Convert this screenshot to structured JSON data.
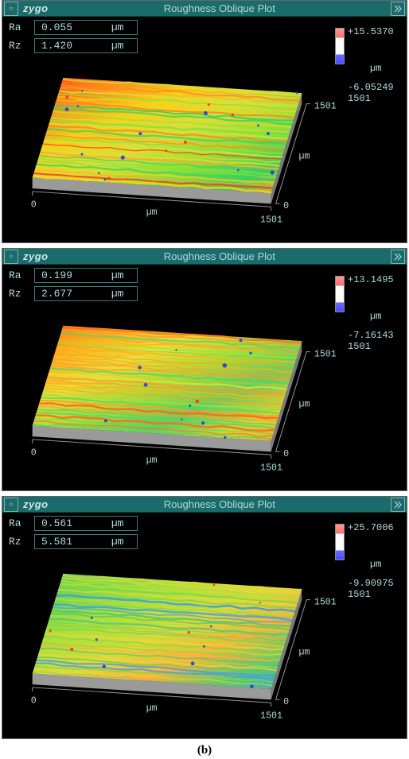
{
  "brand": "zygo",
  "title": "Roughness Oblique Plot",
  "caption": "(b)",
  "axis": {
    "x": {
      "unit": "µm",
      "min": "0",
      "max": "1501"
    },
    "y": {
      "unit": "µm",
      "min": "0",
      "max": "1501"
    }
  },
  "panels": [
    {
      "ra": {
        "label": "Ra",
        "value": "0.055",
        "unit": "µm"
      },
      "rz": {
        "label": "Rz",
        "value": "1.420",
        "unit": "µm"
      },
      "scale": {
        "top": "+15.5370",
        "unit": "µm",
        "bottom": "-6.05249",
        "z_extent": "1501"
      },
      "surface_gradient_id": "gradA"
    },
    {
      "ra": {
        "label": "Ra",
        "value": "0.199",
        "unit": "µm"
      },
      "rz": {
        "label": "Rz",
        "value": "2.677",
        "unit": "µm"
      },
      "scale": {
        "top": "+13.1495",
        "unit": "µm",
        "bottom": "-7.16143",
        "z_extent": "1501"
      },
      "surface_gradient_id": "gradB"
    },
    {
      "ra": {
        "label": "Ra",
        "value": "0.561",
        "unit": "µm"
      },
      "rz": {
        "label": "Rz",
        "value": "5.581",
        "unit": "µm"
      },
      "scale": {
        "top": "+25.7006",
        "unit": "µm",
        "bottom": "-9.90975",
        "z_extent": "1501"
      },
      "surface_gradient_id": "gradC"
    }
  ],
  "colors": {
    "panel_bg": "#000000",
    "titlebar_bg": "#1a6b6b",
    "ui_text": "#b0d8d8",
    "axis_line": "#999999"
  },
  "surface_gradients": {
    "gradA": [
      "#ff3a1a",
      "#ff8a1a",
      "#f5d11a",
      "#d6e03a",
      "#8fe03a",
      "#3ad060",
      "#ffaa2a"
    ],
    "gradB": [
      "#ff6a1a",
      "#ffb01a",
      "#e5e03a",
      "#a0e03a",
      "#60d060",
      "#d0d83a",
      "#ff9a2a"
    ],
    "gradC": [
      "#5ac86a",
      "#7ad84a",
      "#b0e03a",
      "#e0d83a",
      "#ffb03a",
      "#60c870",
      "#40a0e0"
    ]
  },
  "oblique_geom": {
    "topLeft": [
      60,
      40
    ],
    "topRight": [
      370,
      60
    ],
    "botRight": [
      330,
      190
    ],
    "botLeft": [
      20,
      170
    ],
    "thickness": 14
  }
}
